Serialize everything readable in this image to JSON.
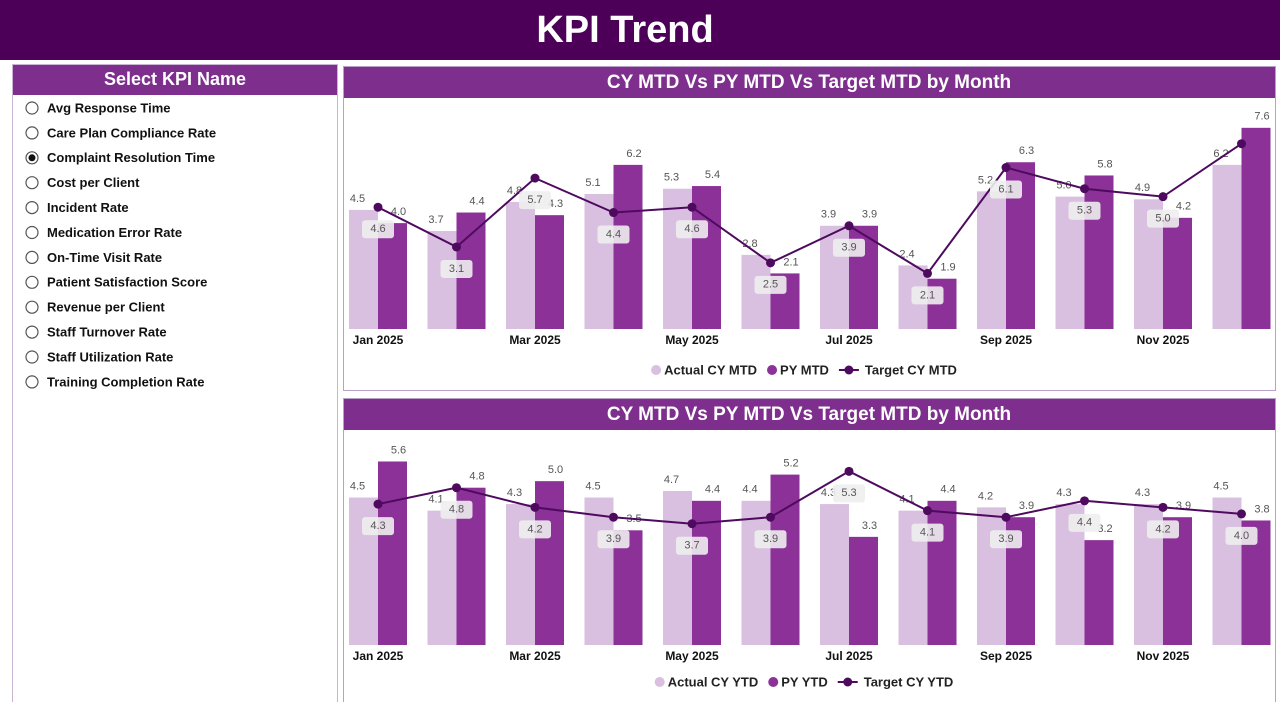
{
  "header": {
    "title": "KPI Trend"
  },
  "filter": {
    "title": "Select KPI Name",
    "selected_index": 2,
    "options": [
      "Avg Response Time",
      "Care Plan Compliance Rate",
      "Complaint Resolution Time",
      "Cost per Client",
      "Incident Rate",
      "Medication Error Rate",
      "On-Time Visit Rate",
      "Patient Satisfaction Score",
      "Revenue per Client",
      "Staff Turnover Rate",
      "Staff Utilization Rate",
      "Training Completion Rate"
    ]
  },
  "chart_data": [
    {
      "type": "bar-line",
      "title": "CY MTD Vs PY MTD Vs Target MTD by Month",
      "categories": [
        "Jan 2025",
        null,
        "Mar 2025",
        null,
        "May 2025",
        null,
        "Jul 2025",
        null,
        "Sep 2025",
        null,
        "Nov 2025",
        null
      ],
      "ylim": [
        0,
        8.5
      ],
      "series": [
        {
          "name": "Actual CY MTD",
          "kind": "bar",
          "color": "#d9bfe0",
          "values": [
            4.5,
            3.7,
            4.8,
            5.1,
            5.3,
            2.8,
            3.9,
            2.4,
            5.2,
            5.0,
            4.9,
            6.2
          ],
          "value_labels": [
            "4.5",
            "3.7",
            "4.8",
            "5.1",
            "5.3",
            "2.8",
            "3.9",
            "2.4",
            "5.2",
            "5.0",
            "4.9",
            "6.2"
          ]
        },
        {
          "name": "PY MTD",
          "kind": "bar",
          "color": "#8b3197",
          "values": [
            4.0,
            4.4,
            4.3,
            6.2,
            5.4,
            2.1,
            3.9,
            1.9,
            6.3,
            5.8,
            4.2,
            7.6
          ],
          "value_labels": [
            "4.0",
            "4.4",
            "4.3",
            "6.2",
            "5.4",
            "2.1",
            "3.9",
            "1.9",
            "6.3",
            "5.8",
            "4.2",
            "7.6"
          ]
        },
        {
          "name": "Target CY MTD",
          "kind": "line",
          "color": "#4e0a5e",
          "values": [
            4.6,
            3.1,
            5.7,
            4.4,
            4.6,
            2.5,
            3.9,
            2.1,
            6.1,
            5.3,
            5.0,
            7.0
          ],
          "value_labels": [
            "4.6",
            "3.1",
            "5.7",
            "4.4",
            "4.6",
            "2.5",
            "3.9",
            "2.1",
            "6.1",
            "5.3",
            "5.0",
            null
          ]
        }
      ]
    },
    {
      "type": "bar-line",
      "title": "CY MTD Vs PY MTD Vs Target MTD by Month",
      "categories": [
        "Jan 2025",
        null,
        "Mar 2025",
        null,
        "May 2025",
        null,
        "Jul 2025",
        null,
        "Sep 2025",
        null,
        "Nov 2025",
        null
      ],
      "ylim": [
        0,
        6.5
      ],
      "series": [
        {
          "name": "Actual CY YTD",
          "kind": "bar",
          "color": "#d9bfe0",
          "values": [
            4.5,
            4.1,
            4.3,
            4.5,
            4.7,
            4.4,
            4.3,
            4.1,
            4.2,
            4.3,
            4.3,
            4.5
          ],
          "value_labels": [
            "4.5",
            "4.1",
            "4.3",
            "4.5",
            "4.7",
            "4.4",
            "4.3",
            "4.1",
            "4.2",
            "4.3",
            "4.3",
            "4.5"
          ]
        },
        {
          "name": "PY YTD",
          "kind": "bar",
          "color": "#8b3197",
          "values": [
            5.6,
            4.8,
            5.0,
            3.5,
            4.4,
            5.2,
            3.3,
            4.4,
            3.9,
            3.2,
            3.9,
            3.8
          ],
          "value_labels": [
            "5.6",
            "4.8",
            "5.0",
            "3.5",
            "4.4",
            "5.2",
            "3.3",
            "4.4",
            "3.9",
            "3.2",
            "3.9",
            "3.8"
          ]
        },
        {
          "name": "Target CY YTD",
          "kind": "line",
          "color": "#4e0a5e",
          "values": [
            4.3,
            4.8,
            4.2,
            3.9,
            3.7,
            3.9,
            5.3,
            4.1,
            3.9,
            4.4,
            4.2,
            4.0
          ],
          "value_labels": [
            "4.3",
            "4.8",
            "4.2",
            "3.9",
            "3.7",
            "3.9",
            "5.3",
            "4.1",
            "3.9",
            "4.4",
            "4.2",
            "4.0"
          ]
        }
      ]
    }
  ]
}
